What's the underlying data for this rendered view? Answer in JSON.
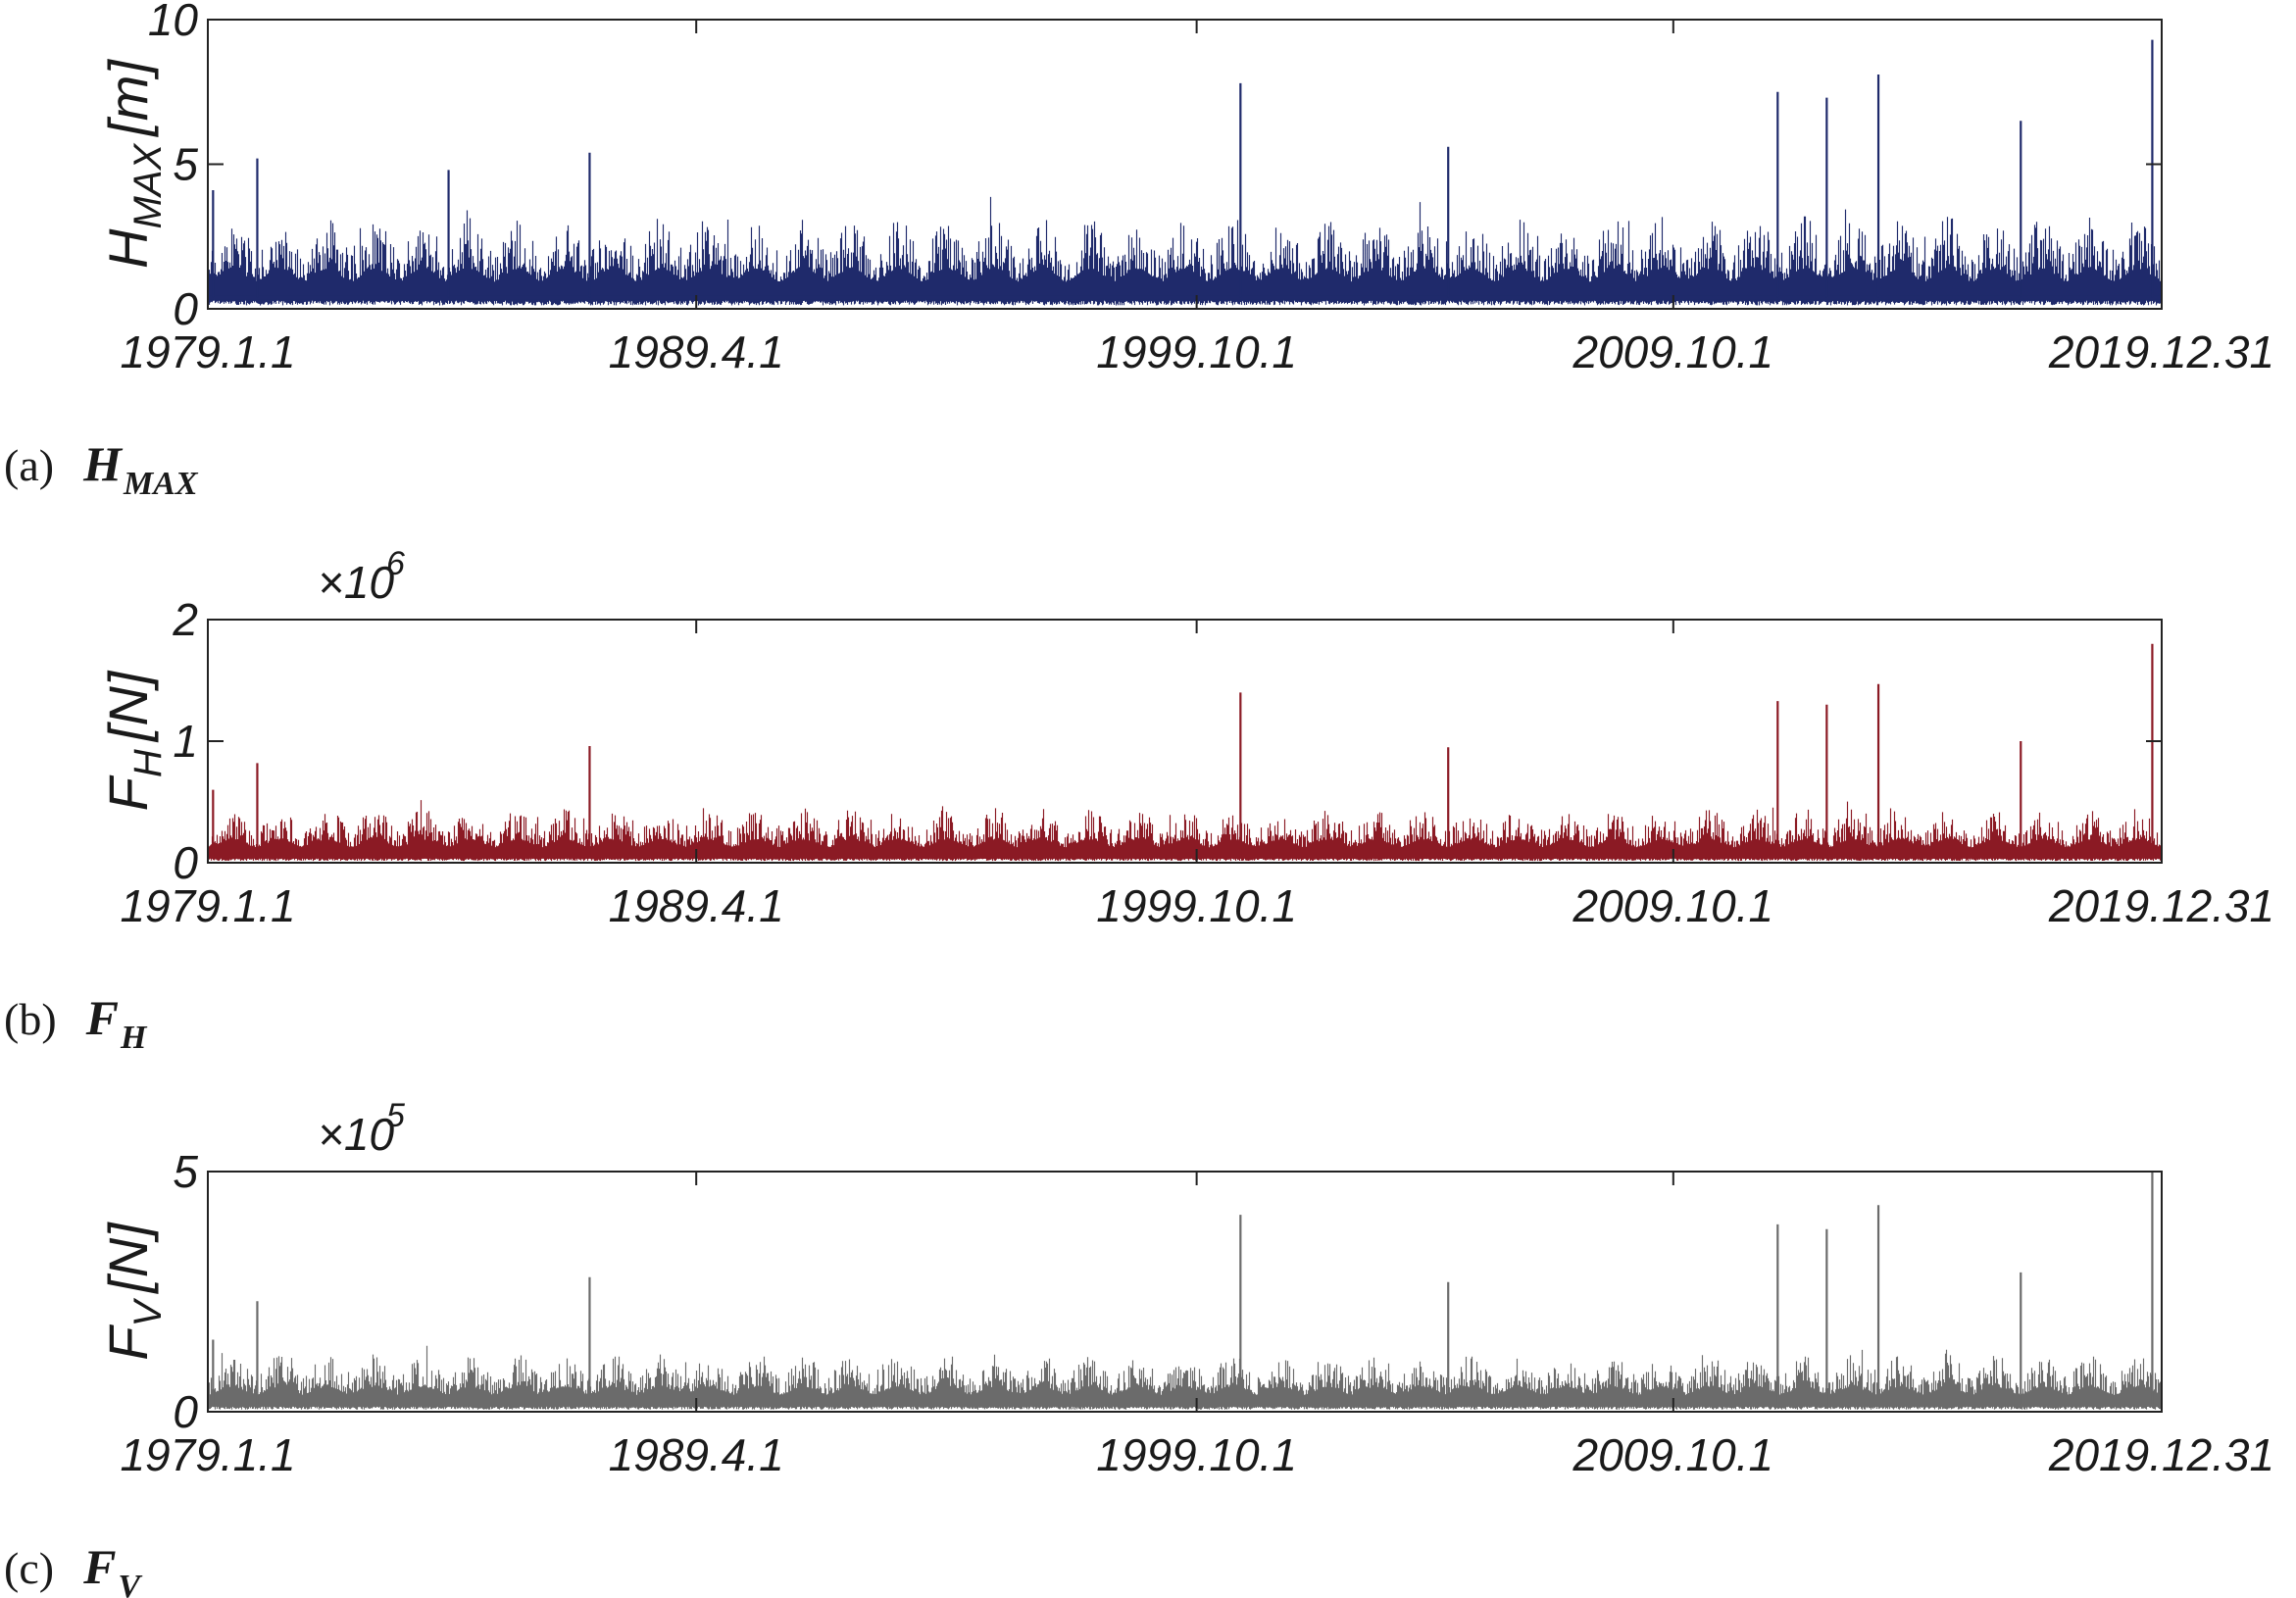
{
  "chart_data": [
    {
      "type": "line",
      "caption_label": "(a)",
      "caption_symbol": "H",
      "caption_subscript": "MAX",
      "ylabel_main": "H",
      "ylabel_sub": "MAX",
      "ylabel_unit": "[m]",
      "multiplier_base": "",
      "multiplier_exp": "",
      "ylim": [
        0,
        10
      ],
      "yticks": [
        "0",
        "5",
        "10"
      ],
      "xlim": [
        "1979.1.1",
        "2019.12.31"
      ],
      "xticks": [
        "1979.1.1",
        "1989.4.1",
        "1999.10.1",
        "2009.10.1",
        "2019.12.31"
      ],
      "color": "#1f2a6b",
      "series": [
        {
          "baseline": 0.4,
          "typical_peak": 3.2,
          "notable_peaks": [
            {
              "x": "1979.2.10",
              "y": 4.1
            },
            {
              "x": "1980.1.15",
              "y": 5.2
            },
            {
              "x": "1984.1.20",
              "y": 4.8
            },
            {
              "x": "1987.1.5",
              "y": 5.4
            },
            {
              "x": "2000.9.1",
              "y": 7.8
            },
            {
              "x": "2005.1.10",
              "y": 5.6
            },
            {
              "x": "2011.12.10",
              "y": 7.5
            },
            {
              "x": "2012.12.20",
              "y": 7.3
            },
            {
              "x": "2014.1.20",
              "y": 8.1
            },
            {
              "x": "2017.1.15",
              "y": 6.5
            },
            {
              "x": "2019.10.20",
              "y": 9.3
            }
          ]
        }
      ]
    },
    {
      "type": "line",
      "caption_label": "(b)",
      "caption_symbol": "F",
      "caption_subscript": "H",
      "ylabel_main": "F",
      "ylabel_sub": "H",
      "ylabel_unit": "[N]",
      "multiplier_base": "×10",
      "multiplier_exp": "6",
      "ylim": [
        0,
        2
      ],
      "yticks": [
        "0",
        "1",
        "2"
      ],
      "xlim": [
        "1979.1.1",
        "2019.12.31"
      ],
      "xticks": [
        "1979.1.1",
        "1989.4.1",
        "1999.10.1",
        "2009.10.1",
        "2019.12.31"
      ],
      "color": "#8b1a24",
      "series": [
        {
          "baseline": 0.05,
          "typical_peak": 0.45,
          "notable_peaks": [
            {
              "x": "1979.2.10",
              "y": 0.6
            },
            {
              "x": "1980.1.15",
              "y": 0.82
            },
            {
              "x": "1987.1.5",
              "y": 0.96
            },
            {
              "x": "2000.9.1",
              "y": 1.4
            },
            {
              "x": "2005.1.10",
              "y": 0.95
            },
            {
              "x": "2011.12.10",
              "y": 1.33
            },
            {
              "x": "2012.12.20",
              "y": 1.3
            },
            {
              "x": "2014.1.20",
              "y": 1.47
            },
            {
              "x": "2017.1.15",
              "y": 1.0
            },
            {
              "x": "2019.10.20",
              "y": 1.8
            }
          ]
        }
      ]
    },
    {
      "type": "line",
      "caption_label": "(c)",
      "caption_symbol": "F",
      "caption_subscript": "V",
      "ylabel_main": "F",
      "ylabel_sub": "V",
      "ylabel_unit": "[N]",
      "multiplier_base": "×10",
      "multiplier_exp": "5",
      "ylim": [
        0,
        5
      ],
      "yticks": [
        "0",
        "5"
      ],
      "xlim": [
        "1979.1.1",
        "2019.12.31"
      ],
      "xticks": [
        "1979.1.1",
        "1989.4.1",
        "1999.10.1",
        "2009.10.1",
        "2019.12.31"
      ],
      "color": "#6b6b6b",
      "series": [
        {
          "baseline": 0.15,
          "typical_peak": 1.2,
          "notable_peaks": [
            {
              "x": "1979.2.10",
              "y": 1.5
            },
            {
              "x": "1980.1.15",
              "y": 2.3
            },
            {
              "x": "1987.1.5",
              "y": 2.8
            },
            {
              "x": "2000.9.1",
              "y": 4.1
            },
            {
              "x": "2005.1.10",
              "y": 2.7
            },
            {
              "x": "2011.12.10",
              "y": 3.9
            },
            {
              "x": "2012.12.20",
              "y": 3.8
            },
            {
              "x": "2014.1.20",
              "y": 4.3
            },
            {
              "x": "2017.1.15",
              "y": 2.9
            },
            {
              "x": "2019.10.20",
              "y": 5.0
            }
          ]
        }
      ]
    }
  ]
}
